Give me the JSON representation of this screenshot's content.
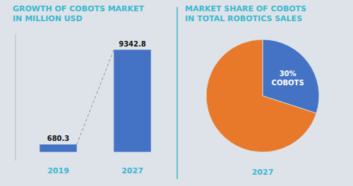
{
  "chart_data": [
    {
      "type": "bar",
      "title": "GROWTH OF COBOTS MARKET\nIN MILLION USD",
      "categories": [
        "2019",
        "2027"
      ],
      "values": [
        680.3,
        9342.8
      ],
      "color": "#4472c4",
      "ylim": [
        -800,
        10800
      ],
      "data_labels": true,
      "tick_labels": "x",
      "grid": false
    },
    {
      "type": "pie",
      "title": "MARKET SHARE OF COBOTS\nIN TOTAL ROBOTICS SALES",
      "values": [
        30,
        70
      ],
      "value_labels": [
        "30%\nCOBOTS",
        null
      ],
      "data_labels": true,
      "colors": [
        "#4472c4",
        "#e8782a"
      ],
      "xlabel": "2027"
    }
  ]
}
